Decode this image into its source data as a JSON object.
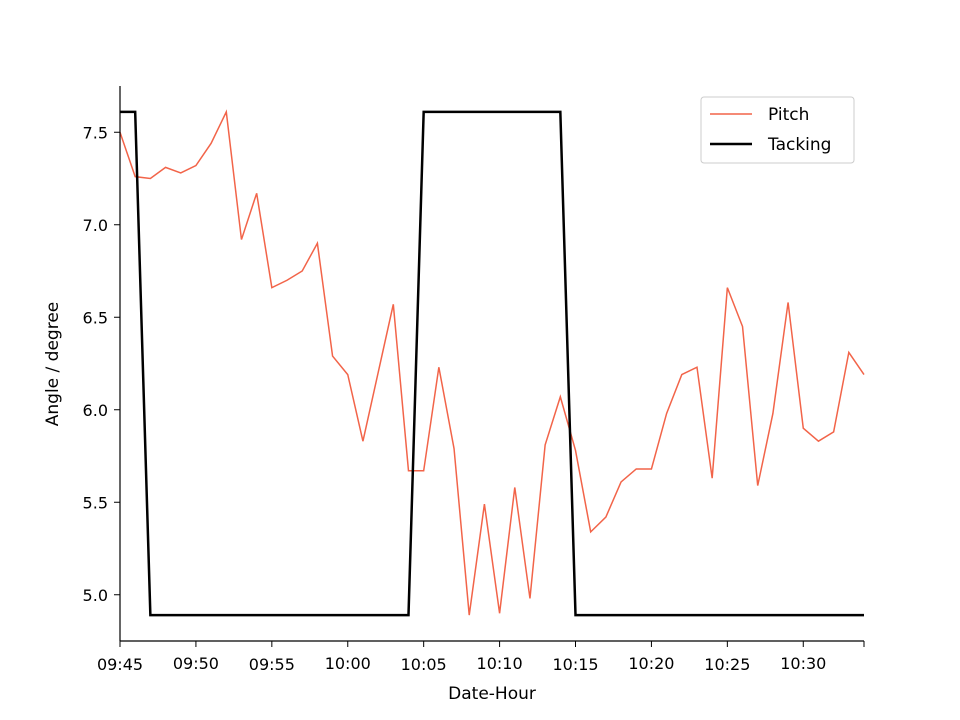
{
  "chart_data": {
    "type": "line",
    "title": "",
    "xlabel": "Date-Hour",
    "ylabel": "Angle / degree",
    "xlim": [
      "09:45",
      "10:34"
    ],
    "ylim": [
      4.75,
      7.75
    ],
    "grid": false,
    "legend_position": "top-right",
    "x_ticks": [
      "09:45",
      "09:50",
      "09:55",
      "10:00",
      "10:05",
      "10:10",
      "10:15",
      "10:20",
      "10:25",
      "10:30",
      "10:34"
    ],
    "x_tick_labels": [
      "09:45",
      "09:50",
      "09:55",
      "10:00",
      "10:05",
      "10:10",
      "10:15",
      "10:20",
      "10:25",
      "10:30",
      ""
    ],
    "y_ticks": [
      5.0,
      5.5,
      6.0,
      6.5,
      7.0,
      7.5
    ],
    "y_tick_labels": [
      "5.0",
      "5.5",
      "6.0",
      "6.5",
      "7.0",
      "7.5"
    ],
    "series": [
      {
        "name": "Pitch",
        "color": "#f26449",
        "x": [
          "09:45",
          "09:46",
          "09:47",
          "09:48",
          "09:49",
          "09:50",
          "09:51",
          "09:52",
          "09:53",
          "09:54",
          "09:55",
          "09:56",
          "09:57",
          "09:58",
          "09:59",
          "10:00",
          "10:01",
          "10:02",
          "10:03",
          "10:04",
          "10:05",
          "10:06",
          "10:07",
          "10:08",
          "10:09",
          "10:10",
          "10:11",
          "10:12",
          "10:13",
          "10:14",
          "10:15",
          "10:16",
          "10:17",
          "10:18",
          "10:19",
          "10:20",
          "10:21",
          "10:22",
          "10:23",
          "10:24",
          "10:25",
          "10:26",
          "10:27",
          "10:28",
          "10:29",
          "10:30",
          "10:31",
          "10:32",
          "10:33",
          "10:34"
        ],
        "values": [
          7.5,
          7.26,
          7.25,
          7.31,
          7.28,
          7.32,
          7.44,
          7.61,
          6.92,
          7.17,
          6.66,
          6.7,
          6.75,
          6.9,
          6.29,
          6.19,
          5.83,
          6.2,
          6.57,
          5.67,
          5.67,
          6.23,
          5.79,
          4.89,
          5.49,
          4.9,
          5.58,
          4.98,
          5.81,
          6.07,
          5.78,
          5.34,
          5.42,
          5.61,
          5.68,
          5.68,
          5.98,
          6.19,
          6.23,
          5.63,
          6.66,
          6.45,
          5.59,
          5.98,
          6.58,
          5.9,
          5.83,
          5.88,
          6.31,
          6.19
        ]
      },
      {
        "name": "Tacking",
        "color": "#000000",
        "x": [
          "09:45",
          "09:46",
          "09:47",
          "10:04",
          "10:05",
          "10:14",
          "10:15",
          "10:34"
        ],
        "values": [
          7.61,
          7.61,
          4.89,
          4.89,
          7.61,
          7.61,
          4.89,
          4.89
        ]
      }
    ]
  }
}
